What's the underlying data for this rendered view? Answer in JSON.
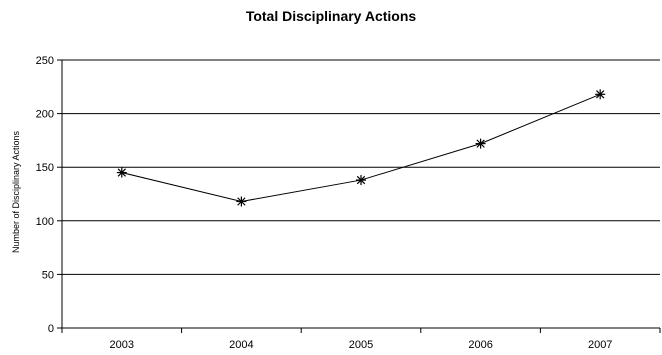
{
  "chart_data": {
    "type": "line",
    "title": "Total Disciplinary Actions",
    "xlabel": "",
    "ylabel": "Number of Disciplinary Actions",
    "categories": [
      "2003",
      "2004",
      "2005",
      "2006",
      "2007"
    ],
    "series": [
      {
        "values": [
          145,
          118,
          138,
          172,
          218
        ]
      }
    ],
    "ylim": [
      0,
      250
    ],
    "yticks": [
      0,
      50,
      100,
      150,
      200,
      250
    ],
    "grid": "horizontal",
    "marker": "asterisk",
    "line_color": "#000000"
  }
}
